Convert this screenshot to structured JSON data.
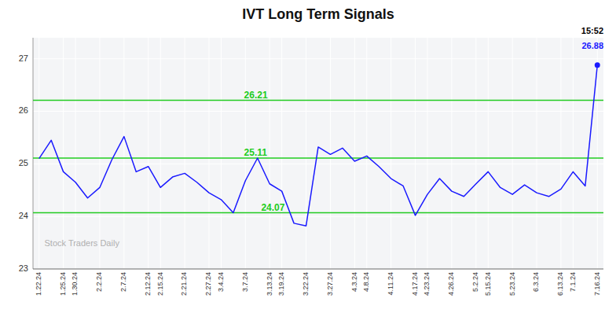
{
  "chart_data": {
    "type": "line",
    "title": "IVT Long Term Signals",
    "categories": [
      "1.22.24",
      null,
      "1.25.24",
      "1.30.24",
      null,
      "2.2.24",
      null,
      "2.7.24",
      null,
      "2.12.24",
      "2.15.24",
      null,
      "2.21.24",
      null,
      "2.27.24",
      "3.4.24",
      null,
      "3.7.24",
      null,
      "3.13.24",
      "3.19.24",
      null,
      "3.22.24",
      null,
      "3.27.24",
      null,
      "4.3.24",
      "4.8.24",
      null,
      "4.11.24",
      null,
      "4.17.24",
      "4.23.24",
      null,
      "4.26.24",
      null,
      "5.2.24",
      "5.15.24",
      null,
      "5.23.24",
      null,
      "6.3.24",
      null,
      "6.13.24",
      "7.1.24",
      null,
      "7.16.24"
    ],
    "series": [
      {
        "color": "#1a1aff",
        "values": [
          25.1,
          25.45,
          24.85,
          24.65,
          24.35,
          24.55,
          25.08,
          25.52,
          24.85,
          24.95,
          24.55,
          24.75,
          24.82,
          24.65,
          24.45,
          24.32,
          24.07,
          24.68,
          25.11,
          24.62,
          24.48,
          23.87,
          23.82,
          25.32,
          25.18,
          25.3,
          25.05,
          25.15,
          24.95,
          24.72,
          24.58,
          24.02,
          24.42,
          24.72,
          24.48,
          24.38,
          24.62,
          24.85,
          24.55,
          24.42,
          24.6,
          24.45,
          24.38,
          24.52,
          24.85,
          24.58,
          26.88
        ]
      }
    ],
    "hlines": {
      "color": "#22cc22",
      "values": [
        24.07,
        25.11,
        26.21
      ]
    },
    "annotations": [
      "15:52",
      "26.88",
      "Stock Traders Daily"
    ],
    "ylim": [
      23.0,
      27.4
    ],
    "yticks": [
      23,
      24,
      25,
      26,
      27
    ],
    "grid": true
  }
}
